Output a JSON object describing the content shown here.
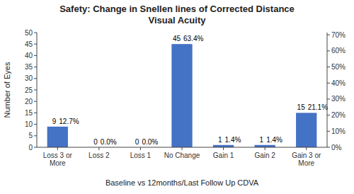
{
  "chart_data": {
    "type": "bar",
    "title": "Safety: Change in Snellen lines of Corrected Distance\nVisual Acuity",
    "xlabel": "Baseline vs 12months/Last Follow Up CDVA",
    "ylabel": "Number of Eyes",
    "categories": [
      "Loss 3 or\nMore",
      "Loss 2",
      "Loss 1",
      "No Change",
      "Gain 1",
      "Gain 2",
      "Gain 3 or\nMore"
    ],
    "values": [
      9,
      0,
      0,
      45,
      1,
      1,
      15
    ],
    "color": "#4472C4",
    "data_labels": true,
    "annotations": [
      "12.7%",
      "0.0%",
      "0.0%",
      "63.4%",
      "1.4%",
      "1.4%",
      "21.1%"
    ],
    "ylim": [
      0,
      50
    ],
    "yticks": [
      0,
      5,
      10,
      15,
      20,
      25,
      30,
      35,
      40,
      45,
      50
    ],
    "y2lim": [
      0,
      0.7143
    ],
    "y2ticks": [
      {
        "value": 0,
        "label": "0%"
      },
      {
        "value": 0.1,
        "label": "10%"
      },
      {
        "value": 0.2,
        "label": "20%"
      },
      {
        "value": 0.3,
        "label": "30%"
      },
      {
        "value": 0.4,
        "label": "40%"
      },
      {
        "value": 0.5,
        "label": "50%"
      },
      {
        "value": 0.6,
        "label": "60%"
      },
      {
        "value": 0.7,
        "label": "70%"
      }
    ],
    "grid": false
  }
}
